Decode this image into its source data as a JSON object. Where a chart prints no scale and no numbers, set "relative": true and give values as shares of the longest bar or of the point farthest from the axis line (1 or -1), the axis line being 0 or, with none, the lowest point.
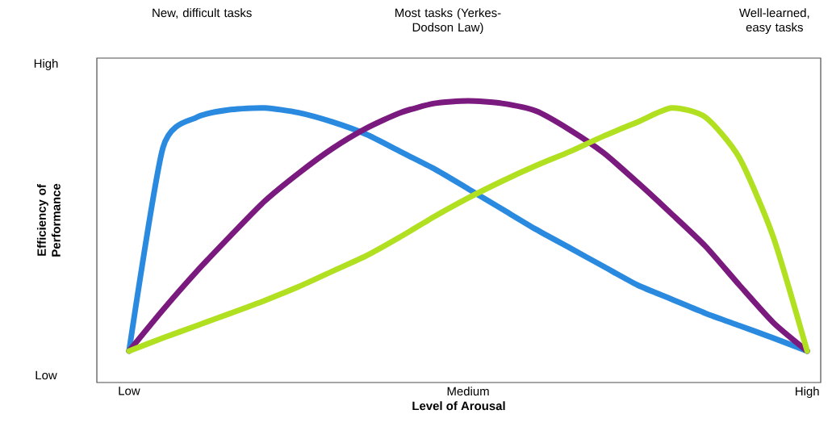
{
  "chart_data": {
    "type": "line",
    "relative": true,
    "xlabel": "Level of Arousal",
    "ylabel": "Efficiency of Performance",
    "annotations": [
      "New, difficult tasks",
      "Most tasks (Yerkes-Dodson Law)",
      "Well-learned, easy tasks",
      "High",
      "Low"
    ],
    "categories": [
      "Low",
      null,
      null,
      null,
      null,
      null,
      null,
      null,
      null,
      null,
      "Medium",
      null,
      null,
      null,
      null,
      null,
      null,
      null,
      null,
      null,
      "High"
    ],
    "series": [
      {
        "color": "#2a8ae0",
        "values": [
          0.112,
          0.834,
          0.942,
          0.969,
          0.975,
          0.958,
          0.925,
          0.881,
          0.82,
          0.759,
          0.688,
          0.616,
          0.544,
          0.478,
          0.412,
          0.346,
          0.296,
          0.246,
          0.202,
          0.158,
          0.112
        ]
      },
      {
        "color": "#7b1a7e",
        "values": [
          0.112,
          0.258,
          0.395,
          0.522,
          0.644,
          0.743,
          0.831,
          0.903,
          0.958,
          0.991,
          1.0,
          0.991,
          0.964,
          0.897,
          0.815,
          0.71,
          0.599,
          0.484,
          0.346,
          0.213,
          0.112
        ]
      },
      {
        "color": "#b0e020",
        "values": [
          0.112,
          0.158,
          0.202,
          0.246,
          0.291,
          0.34,
          0.395,
          0.45,
          0.517,
          0.589,
          0.655,
          0.715,
          0.77,
          0.82,
          0.875,
          0.925,
          0.975,
          0.942,
          0.798,
          0.517,
          0.112
        ]
      }
    ]
  }
}
